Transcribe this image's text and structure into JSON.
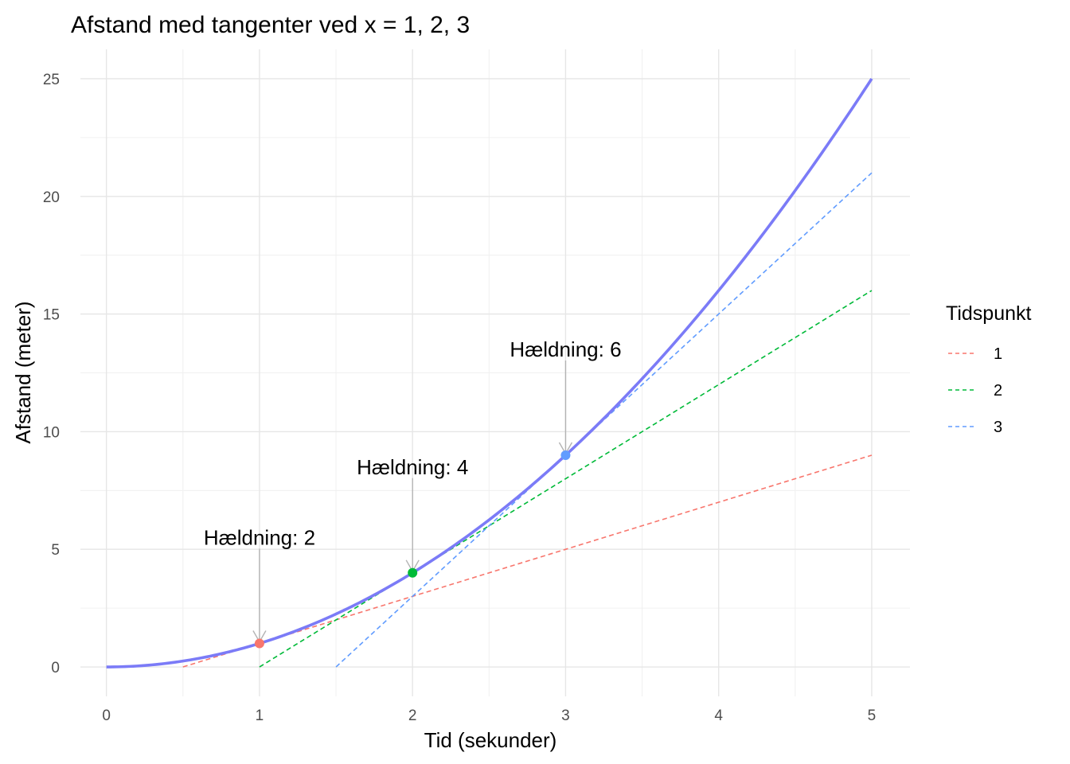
{
  "chart_data": {
    "type": "line",
    "title": "Afstand med tangenter ved x = 1, 2, 3",
    "xlabel": "Tid (sekunder)",
    "ylabel": "Afstand (meter)",
    "xlim": [
      -0.17,
      5.25
    ],
    "ylim": [
      -1.25,
      26.25
    ],
    "x_ticks": [
      0,
      1,
      2,
      3,
      4,
      5
    ],
    "x_tick_labels": [
      "0",
      "1",
      "2",
      "3",
      "4",
      "5"
    ],
    "y_ticks": [
      0,
      5,
      10,
      15,
      20,
      25
    ],
    "y_tick_labels": [
      "0",
      "5",
      "10",
      "15",
      "20",
      "25"
    ],
    "grid": true,
    "legend": {
      "title": "Tidspunkt",
      "position": "right",
      "entries": [
        {
          "label": "1",
          "color": "#F8766D"
        },
        {
          "label": "2",
          "color": "#00BA38"
        },
        {
          "label": "3",
          "color": "#619CFF"
        }
      ]
    },
    "curve": {
      "function": "y = x^2",
      "color": "#7B7BF7",
      "x": [
        0,
        0.25,
        0.5,
        0.75,
        1,
        1.25,
        1.5,
        1.75,
        2,
        2.25,
        2.5,
        2.75,
        3,
        3.25,
        3.5,
        3.75,
        4,
        4.25,
        4.5,
        4.75,
        5
      ],
      "y": [
        0,
        0.0625,
        0.25,
        0.5625,
        1,
        1.5625,
        2.25,
        3.0625,
        4,
        5.0625,
        6.25,
        7.5625,
        9,
        10.5625,
        12.25,
        14.0625,
        16,
        18.0625,
        20.25,
        22.5625,
        25
      ]
    },
    "tangents": [
      {
        "name": "1",
        "color": "#F8766D",
        "x": [
          0.5,
          5
        ],
        "y": [
          0,
          9
        ]
      },
      {
        "name": "2",
        "color": "#00BA38",
        "x": [
          1,
          5
        ],
        "y": [
          0,
          16
        ]
      },
      {
        "name": "3",
        "color": "#619CFF",
        "x": [
          1.5,
          5
        ],
        "y": [
          0,
          21
        ]
      }
    ],
    "points": [
      {
        "x": 1,
        "y": 1,
        "color": "#F8766D"
      },
      {
        "x": 2,
        "y": 4,
        "color": "#00BA38"
      },
      {
        "x": 3,
        "y": 9,
        "color": "#619CFF"
      }
    ],
    "annotations": [
      {
        "text": "Hældning: 2",
        "x": 1,
        "y": 1,
        "label_y": 5.5
      },
      {
        "text": "Hældning: 4",
        "x": 2,
        "y": 4,
        "label_y": 8.5
      },
      {
        "text": "Hældning: 6",
        "x": 3,
        "y": 9,
        "label_y": 13.5
      }
    ]
  }
}
